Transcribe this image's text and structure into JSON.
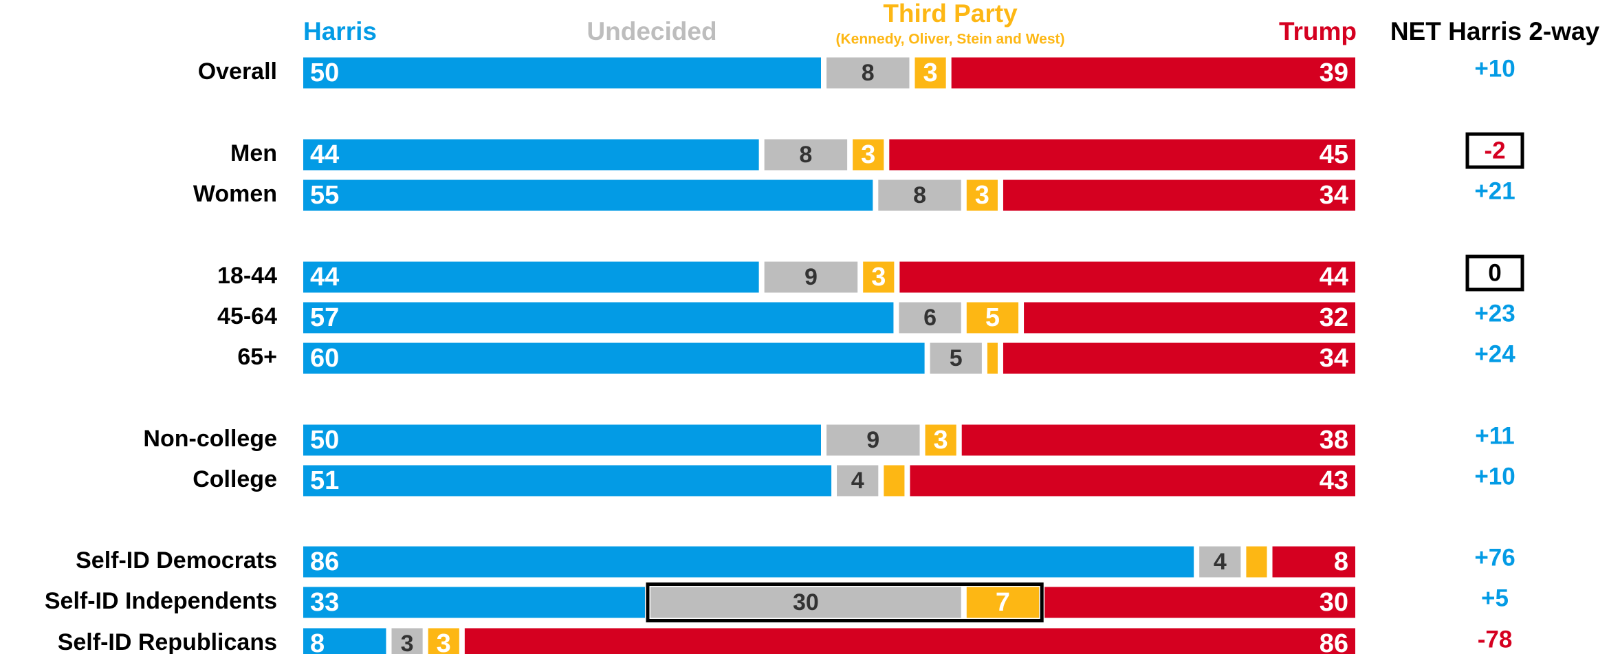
{
  "chart_data": {
    "type": "bar",
    "orientation": "horizontal",
    "stacked": true,
    "categories": [
      "Overall",
      "Men",
      "Women",
      "18-44",
      "45-64",
      "65+",
      "Non-college",
      "College",
      "Self-ID Democrats",
      "Self-ID Independents",
      "Self-ID Republicans"
    ],
    "series": [
      {
        "name": "Harris",
        "color": "#039be5",
        "values": [
          50,
          44,
          55,
          44,
          57,
          60,
          50,
          51,
          86,
          33,
          8
        ]
      },
      {
        "name": "Undecided",
        "color": "#bdbdbd",
        "values": [
          8,
          8,
          8,
          9,
          6,
          5,
          9,
          4,
          4,
          30,
          3
        ]
      },
      {
        "name": "Third Party",
        "subtitle": "(Kennedy, Oliver, Stein and West)",
        "color": "#fdb714",
        "values": [
          3,
          3,
          3,
          3,
          5,
          1,
          3,
          2,
          2,
          7,
          3
        ]
      },
      {
        "name": "Trump",
        "color": "#d50020",
        "values": [
          39,
          45,
          34,
          44,
          32,
          34,
          38,
          43,
          8,
          30,
          86
        ]
      }
    ],
    "xlim": [
      0,
      100
    ],
    "net": {
      "title": "NET Harris 2-way",
      "values": [
        10,
        -2,
        21,
        0,
        23,
        24,
        11,
        10,
        76,
        5,
        -78
      ],
      "value_labels": [
        "+10",
        "-2",
        "+21",
        "0",
        "+23",
        "+24",
        "+11",
        "+10",
        "+76",
        "+5",
        "-78"
      ],
      "boxed": [
        1,
        3
      ]
    },
    "highlight_box": {
      "row": 9,
      "series": [
        1,
        2
      ]
    }
  }
}
